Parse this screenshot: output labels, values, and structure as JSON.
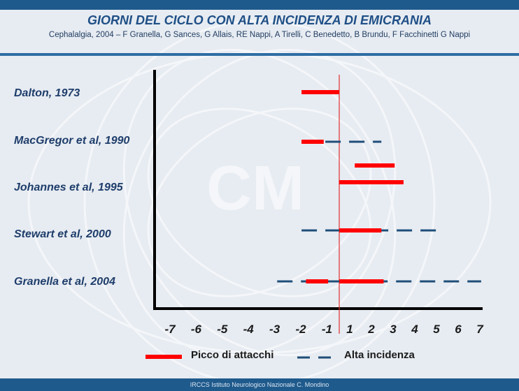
{
  "header": {
    "title": "GIORNI DEL CICLO CON ALTA INCIDENZA DI EMICRANIA",
    "subtitle": "Cephalalgia, 2004 – F Granella, G Sances, G Allais, RE Nappi, A Tirelli, C Benedetto, B Brundu, F Facchinetti G Nappi"
  },
  "watermark": {
    "text": "CM"
  },
  "footer": {
    "text": "IRCCS Istituto Neurologico Nazionale C. Mondino"
  },
  "colors": {
    "picco": "#ff0000",
    "alta": "#1f4e79",
    "axis": "#000000",
    "ref": "#e03030"
  },
  "chart_data": {
    "type": "range",
    "x_ticks": [
      -7,
      -6,
      -5,
      -4,
      -3,
      -2,
      -1,
      1,
      2,
      3,
      4,
      5,
      6,
      7
    ],
    "reference_line": 0,
    "studies": [
      {
        "label": "Dalton, 1973",
        "picco": [
          [
            -1.7,
            0
          ]
        ],
        "alta": []
      },
      {
        "label": "MacGregor et al, 1990",
        "picco": [
          [
            -1.7,
            -0.7
          ]
        ],
        "alta": [
          [
            -1.7,
            1.9
          ]
        ]
      },
      {
        "label": "Johannes et al, 1995",
        "picco": [
          [
            0.7,
            2.5
          ],
          [
            0,
            2.9
          ]
        ],
        "alta": []
      },
      {
        "label": "Stewart et al, 2000",
        "picco": [
          [
            0,
            1.9
          ]
        ],
        "alta": [
          [
            -1.7,
            4.6
          ]
        ]
      },
      {
        "label": "Granella et al, 2004",
        "picco": [
          [
            -1.5,
            -0.5
          ],
          [
            0,
            2
          ]
        ],
        "alta": [
          [
            -2.8,
            6.4
          ]
        ]
      }
    ],
    "legend": [
      {
        "key": "picco",
        "label": "Picco di attacchi"
      },
      {
        "key": "alta",
        "label": "Alta incidenza"
      }
    ]
  }
}
